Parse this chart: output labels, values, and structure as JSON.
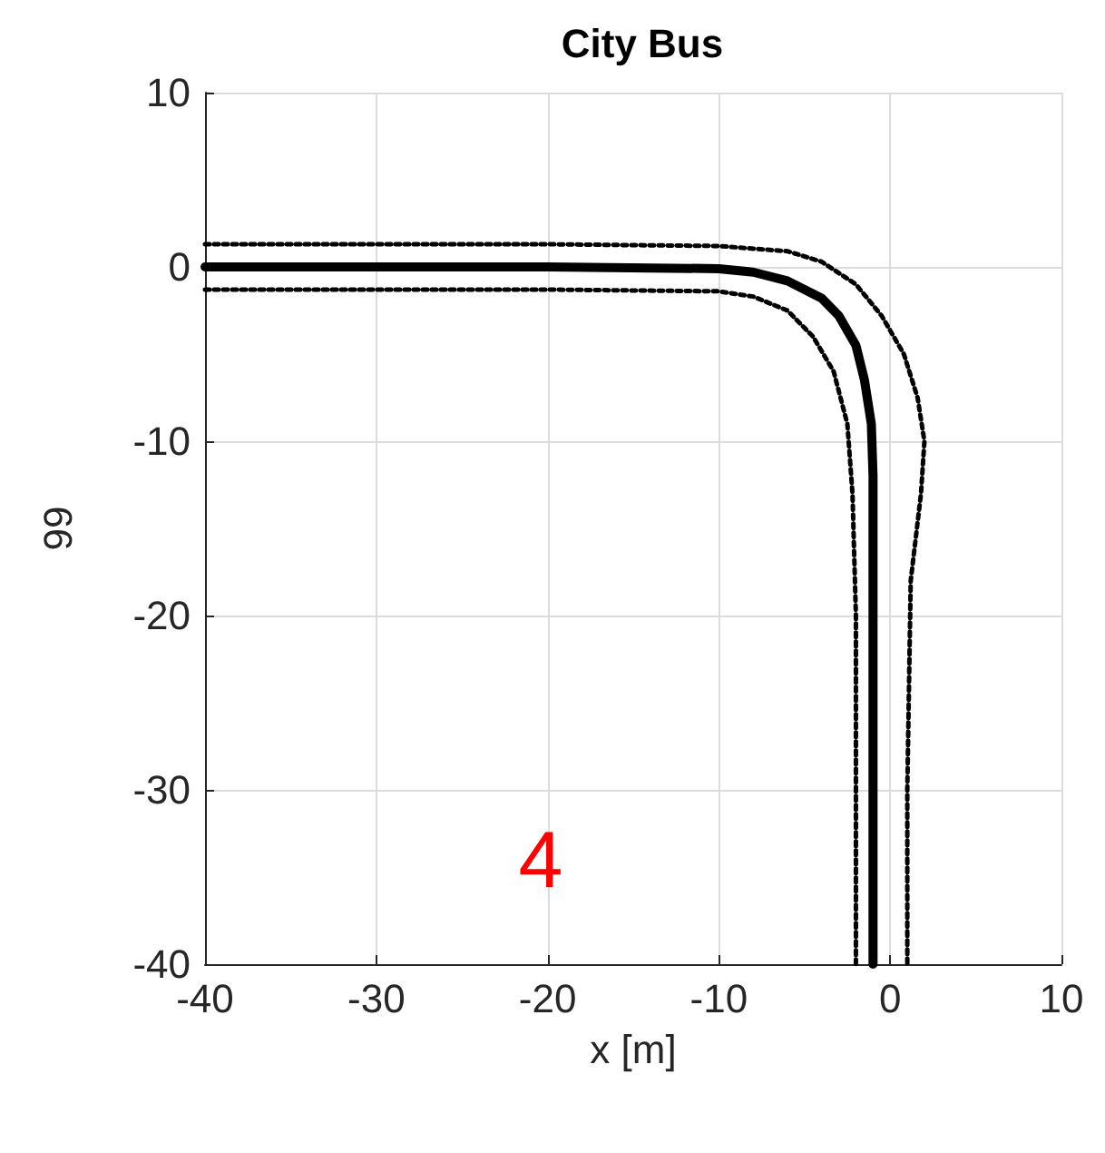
{
  "chart_data": {
    "type": "line",
    "title": "City Bus",
    "xlabel": "x [m]",
    "ylabel": "99",
    "xlim": [
      -40,
      10
    ],
    "xticks": [
      -40,
      -30,
      -20,
      -10,
      0,
      10
    ],
    "ylim": [
      -40,
      10
    ],
    "yticks": [
      -40,
      -30,
      -20,
      -10,
      0,
      10
    ],
    "grid": true,
    "marker": "none",
    "annotations": [
      "4"
    ],
    "series": [
      {
        "color": "#000000",
        "line_style": "solid",
        "x": [
          -40,
          -30,
          -20,
          -10,
          -8,
          -6,
          -4,
          -3,
          -2,
          -1.5,
          -1.1,
          -1,
          -1,
          -1,
          -1
        ],
        "values": [
          0,
          0,
          0,
          -0.1,
          -0.3,
          -0.8,
          -1.8,
          -2.8,
          -4.5,
          -6.5,
          -9,
          -12,
          -20,
          -30,
          -40
        ]
      },
      {
        "color": "#000000",
        "line_style": "dotted",
        "x": [
          -40,
          -20,
          -10,
          -6,
          -4,
          -2,
          -0.5,
          0.8,
          1.6,
          2,
          1.8,
          1.2,
          1,
          1
        ],
        "values": [
          1.3,
          1.3,
          1.2,
          0.9,
          0.3,
          -1,
          -2.8,
          -5,
          -7.5,
          -10,
          -13,
          -18,
          -30,
          -40
        ]
      },
      {
        "color": "#000000",
        "line_style": "dotted",
        "x": [
          -40,
          -20,
          -10,
          -8,
          -6,
          -4.5,
          -3.3,
          -2.5,
          -2.2,
          -2,
          -2,
          -2
        ],
        "values": [
          -1.3,
          -1.3,
          -1.4,
          -1.7,
          -2.5,
          -4,
          -6,
          -9,
          -13,
          -20,
          -30,
          -40
        ]
      }
    ]
  }
}
